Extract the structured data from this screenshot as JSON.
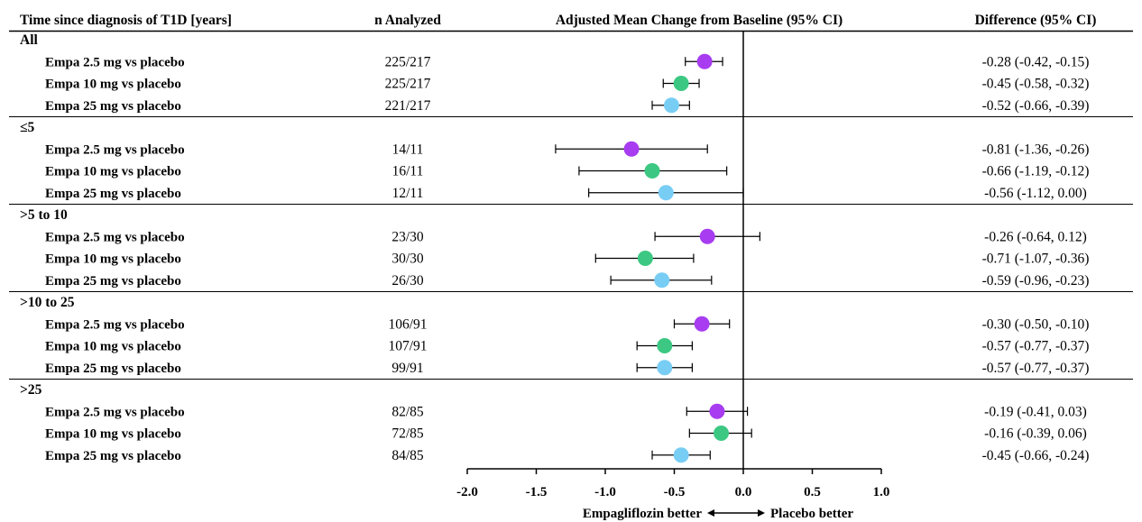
{
  "headers": {
    "col1": "Time since diagnosis of T1D [years]",
    "col2": "n Analyzed",
    "col3": "Adjusted Mean Change from Baseline (95% CI)",
    "col4": "Difference (95% CI)"
  },
  "colors": {
    "Empa 2.5 mg vs placebo": "#a73cf0",
    "Empa 10 mg vs placebo": "#3cc882",
    "Empa 25 mg vs placebo": "#78cdf5"
  },
  "chart_data": {
    "type": "forest",
    "x_axis": {
      "range": [
        -2.0,
        1.0
      ],
      "ticks": [
        -2.0,
        -1.5,
        -1.0,
        -0.5,
        0.0,
        0.5,
        1.0
      ],
      "tick_labels": [
        "-2.0",
        "-1.5",
        "-1.0",
        "-0.5",
        "0.0",
        "0.5",
        "1.0"
      ],
      "reference_line": 0.0,
      "footer": {
        "left": "Empagliflozin better",
        "right": "Placebo better"
      }
    },
    "groups": [
      {
        "label": "All",
        "rows": [
          {
            "label": "Empa 2.5 mg vs placebo",
            "n": "225/217",
            "estimate": -0.28,
            "lower": -0.42,
            "upper": -0.15,
            "text": "-0.28 (-0.42, -0.15)"
          },
          {
            "label": "Empa 10 mg vs placebo",
            "n": "225/217",
            "estimate": -0.45,
            "lower": -0.58,
            "upper": -0.32,
            "text": "-0.45 (-0.58, -0.32)"
          },
          {
            "label": "Empa 25 mg vs placebo",
            "n": "221/217",
            "estimate": -0.52,
            "lower": -0.66,
            "upper": -0.39,
            "text": "-0.52 (-0.66, -0.39)"
          }
        ]
      },
      {
        "label": "≤5",
        "rows": [
          {
            "label": "Empa 2.5 mg vs placebo",
            "n": "14/11",
            "estimate": -0.81,
            "lower": -1.36,
            "upper": -0.26,
            "text": "-0.81 (-1.36, -0.26)"
          },
          {
            "label": "Empa 10 mg vs placebo",
            "n": "16/11",
            "estimate": -0.66,
            "lower": -1.19,
            "upper": -0.12,
            "text": "-0.66 (-1.19, -0.12)"
          },
          {
            "label": "Empa 25 mg vs placebo",
            "n": "12/11",
            "estimate": -0.56,
            "lower": -1.12,
            "upper": 0.0,
            "text": "-0.56 (-1.12, 0.00)"
          }
        ]
      },
      {
        "label": ">5 to 10",
        "rows": [
          {
            "label": "Empa 2.5 mg vs placebo",
            "n": "23/30",
            "estimate": -0.26,
            "lower": -0.64,
            "upper": 0.12,
            "text": "-0.26 (-0.64, 0.12)"
          },
          {
            "label": "Empa 10 mg vs placebo",
            "n": "30/30",
            "estimate": -0.71,
            "lower": -1.07,
            "upper": -0.36,
            "text": "-0.71 (-1.07, -0.36)"
          },
          {
            "label": "Empa 25 mg vs placebo",
            "n": "26/30",
            "estimate": -0.59,
            "lower": -0.96,
            "upper": -0.23,
            "text": "-0.59 (-0.96, -0.23)"
          }
        ]
      },
      {
        "label": ">10 to 25",
        "rows": [
          {
            "label": "Empa 2.5 mg vs placebo",
            "n": "106/91",
            "estimate": -0.3,
            "lower": -0.5,
            "upper": -0.1,
            "text": "-0.30 (-0.50, -0.10)"
          },
          {
            "label": "Empa 10 mg vs placebo",
            "n": "107/91",
            "estimate": -0.57,
            "lower": -0.77,
            "upper": -0.37,
            "text": "-0.57 (-0.77, -0.37)"
          },
          {
            "label": "Empa 25 mg vs placebo",
            "n": "99/91",
            "estimate": -0.57,
            "lower": -0.77,
            "upper": -0.37,
            "text": "-0.57 (-0.77, -0.37)"
          }
        ]
      },
      {
        "label": ">25",
        "rows": [
          {
            "label": "Empa 2.5 mg vs placebo",
            "n": "82/85",
            "estimate": -0.19,
            "lower": -0.41,
            "upper": 0.03,
            "text": "-0.19 (-0.41, 0.03)"
          },
          {
            "label": "Empa 10 mg vs placebo",
            "n": "72/85",
            "estimate": -0.16,
            "lower": -0.39,
            "upper": 0.06,
            "text": "-0.16 (-0.39, 0.06)"
          },
          {
            "label": "Empa 25 mg vs placebo",
            "n": "84/85",
            "estimate": -0.45,
            "lower": -0.66,
            "upper": -0.24,
            "text": "-0.45 (-0.66, -0.24)"
          }
        ]
      }
    ]
  }
}
